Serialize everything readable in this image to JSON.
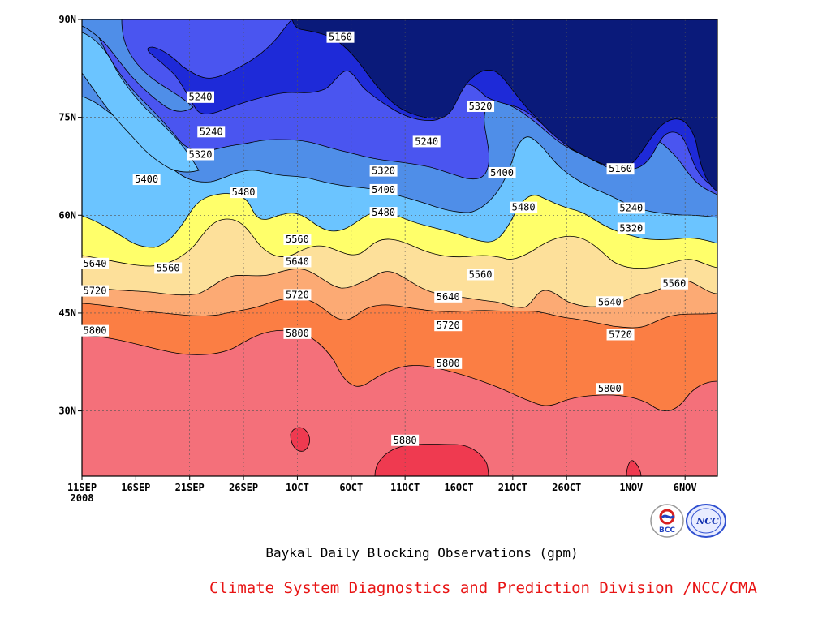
{
  "chart_data": {
    "type": "contour",
    "title": "Baykal Daily Blocking Observations (gpm)",
    "x_ticks": [
      "11SEP",
      "16SEP",
      "21SEP",
      "26SEP",
      "1OCT",
      "6OCT",
      "11OCT",
      "16OCT",
      "21OCT",
      "26OCT",
      "1NOV",
      "6NOV"
    ],
    "x_tick_year": "2008",
    "y_ticks": [
      "30N",
      "45N",
      "60N",
      "75N",
      "90N"
    ],
    "y_tick_values": [
      30,
      45,
      60,
      75,
      90
    ],
    "xlim": [
      "2008-09-11",
      "2008-11-09"
    ],
    "ylim": [
      20,
      90
    ],
    "grid": true,
    "contour_levels": [
      5160,
      5240,
      5320,
      5400,
      5480,
      5560,
      5640,
      5720,
      5800,
      5880
    ],
    "contour_labels": [
      {
        "text": "5160",
        "x": "2008-10-05",
        "y": 87.3
      },
      {
        "text": "5240",
        "x": "2008-09-22",
        "y": 78.1
      },
      {
        "text": "5240",
        "x": "2008-09-23",
        "y": 72.8
      },
      {
        "text": "5240",
        "x": "2008-10-13",
        "y": 71.3
      },
      {
        "text": "5320",
        "x": "2008-09-22",
        "y": 69.3
      },
      {
        "text": "5320",
        "x": "2008-10-09",
        "y": 66.8
      },
      {
        "text": "5320",
        "x": "2008-10-18",
        "y": 76.7
      },
      {
        "text": "5400",
        "x": "2008-09-17",
        "y": 65.5
      },
      {
        "text": "5400",
        "x": "2008-10-09",
        "y": 63.9
      },
      {
        "text": "5400",
        "x": "2008-10-20",
        "y": 66.5
      },
      {
        "text": "5480",
        "x": "2008-09-26",
        "y": 63.5
      },
      {
        "text": "5480",
        "x": "2008-10-09",
        "y": 60.4
      },
      {
        "text": "5480",
        "x": "2008-10-22",
        "y": 61.2
      },
      {
        "text": "5560",
        "x": "2008-10-01",
        "y": 56.3
      },
      {
        "text": "5560",
        "x": "2008-09-19",
        "y": 51.9
      },
      {
        "text": "5560",
        "x": "2008-10-18",
        "y": 50.9
      },
      {
        "text": "5640",
        "x": "2008-09-12",
        "y": 52.6
      },
      {
        "text": "5640",
        "x": "2008-10-01",
        "y": 52.9
      },
      {
        "text": "5640",
        "x": "2008-10-15",
        "y": 47.5
      },
      {
        "text": "5720",
        "x": "2008-09-12",
        "y": 48.4
      },
      {
        "text": "5720",
        "x": "2008-10-01",
        "y": 47.8
      },
      {
        "text": "5720",
        "x": "2008-10-15",
        "y": 43.1
      },
      {
        "text": "5800",
        "x": "2008-09-12",
        "y": 42.3
      },
      {
        "text": "5800",
        "x": "2008-10-01",
        "y": 41.9
      },
      {
        "text": "5800",
        "x": "2008-10-15",
        "y": 37.3
      },
      {
        "text": "5880",
        "x": "2008-10-11",
        "y": 25.5
      },
      {
        "text": "5640",
        "x": "2008-10-30",
        "y": 46.7
      },
      {
        "text": "5720",
        "x": "2008-10-31",
        "y": 41.7
      },
      {
        "text": "5800",
        "x": "2008-10-30",
        "y": 33.4
      },
      {
        "text": "5560",
        "x": "2008-11-05",
        "y": 49.5
      },
      {
        "text": "5160",
        "x": "2008-10-31",
        "y": 67.1
      },
      {
        "text": "5240",
        "x": "2008-11-01",
        "y": 61.1
      },
      {
        "text": "5320",
        "x": "2008-11-01",
        "y": 58.0
      },
      {
        "text": "5240",
        "x": "2008-09-22",
        "y": 78.1
      }
    ],
    "fill_colors": {
      "band_lt5160": "#0a1a7a",
      "band_5160_5240": "#1e2ad8",
      "band_5240_5320": "#4a55f0",
      "band_5320_5400": "#4f8ee8",
      "band_5400_5480": "#6bc4ff",
      "band_5480_5560": "#ffff6a",
      "band_5560_5640": "#fde09a",
      "band_5640_5720": "#fcaa74",
      "band_5720_5800": "#fb7e44",
      "band_5800_5880": "#f4707a",
      "band_gt5880": "#ef3a50"
    }
  },
  "credit": "Climate System Diagnostics and Prediction Division /NCC/CMA",
  "logos": [
    {
      "name": "bcc-logo",
      "text": "BCC"
    },
    {
      "name": "ncc-logo",
      "text": "NCC"
    }
  ]
}
